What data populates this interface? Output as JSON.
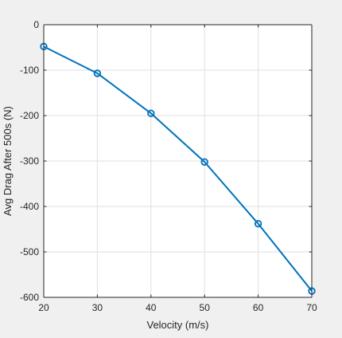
{
  "chart_data": {
    "type": "line",
    "title": "",
    "xlabel": "Velocity (m/s)",
    "ylabel": "Avg Drag After 500s (N)",
    "xlim": [
      20,
      70
    ],
    "ylim": [
      -600,
      0
    ],
    "xticks": [
      20,
      30,
      40,
      50,
      60,
      70
    ],
    "yticks": [
      0,
      -100,
      -200,
      -300,
      -400,
      -500,
      -600
    ],
    "grid": true,
    "legend": "none",
    "series": [
      {
        "x": [
          20,
          30,
          40,
          50,
          60,
          70
        ],
        "y": [
          -48,
          -107,
          -195,
          -302,
          -438,
          -586
        ],
        "color": "#0072bd",
        "marker": "circle"
      }
    ]
  }
}
